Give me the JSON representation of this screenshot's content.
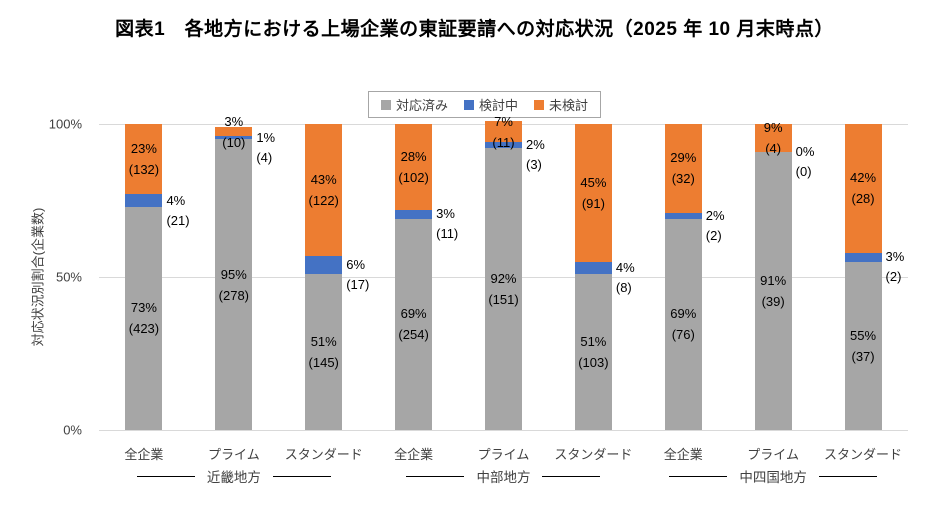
{
  "title": "図表1　各地方における上場企業の東証要請への対応状況（2025 年 10 月末時点）",
  "chart_data": {
    "type": "bar",
    "stacked": true,
    "orientation": "vertical",
    "ylabel": "対応状況別割合(企業数)",
    "ylim": [
      0,
      100
    ],
    "grid": "horizontal",
    "legend_position": "top",
    "yticks": [
      {
        "value": 100,
        "label": "100%"
      },
      {
        "value": 50,
        "label": "50%"
      },
      {
        "value": 0,
        "label": "0%"
      }
    ],
    "categories": [
      "全企業",
      "プライム",
      "スタンダード",
      "全企業",
      "プライム",
      "スタンダード",
      "全企業",
      "プライム",
      "スタンダード"
    ],
    "groups": [
      {
        "label": "近畿地方",
        "span": 3
      },
      {
        "label": "中部地方",
        "span": 3
      },
      {
        "label": "中四国地方",
        "span": 3
      }
    ],
    "series": [
      {
        "name": "対応済み",
        "key": "done",
        "color": "#a6a6a6",
        "label_placement": "inside",
        "values": [
          73,
          95,
          51,
          69,
          92,
          51,
          69,
          91,
          55
        ],
        "counts": [
          423,
          278,
          145,
          254,
          151,
          103,
          76,
          39,
          37
        ]
      },
      {
        "name": "検討中",
        "key": "considering",
        "color": "#4472c4",
        "label_placement": "right",
        "values": [
          4,
          1,
          6,
          3,
          2,
          4,
          2,
          0,
          3
        ],
        "counts": [
          21,
          4,
          17,
          11,
          3,
          8,
          2,
          0,
          2
        ]
      },
      {
        "name": "未検討",
        "key": "not-considered",
        "color": "#ed7d31",
        "label_placement": "inside",
        "values": [
          23,
          3,
          43,
          28,
          7,
          45,
          29,
          9,
          42
        ],
        "counts": [
          132,
          10,
          122,
          102,
          11,
          91,
          32,
          4,
          28
        ]
      }
    ]
  }
}
